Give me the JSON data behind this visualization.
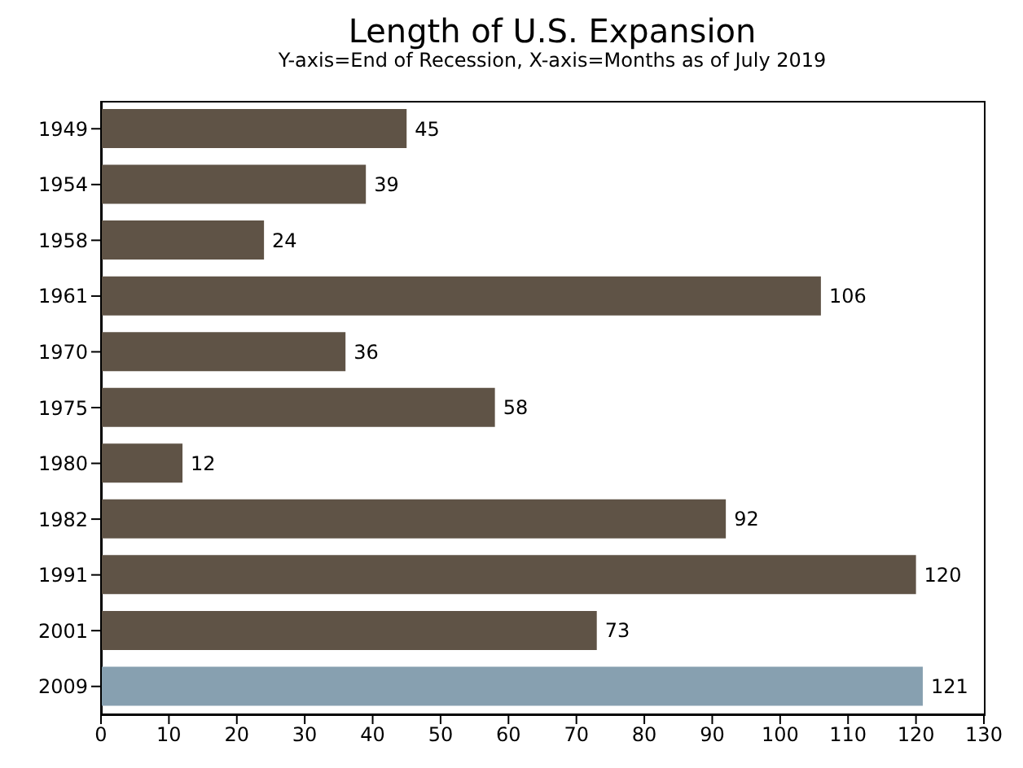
{
  "chart_data": {
    "type": "bar",
    "orientation": "horizontal",
    "title": "Length of U.S. Expansion",
    "subtitle": "Y-axis=End of Recession, X-axis=Months as of July 2019",
    "categories": [
      "1949",
      "1954",
      "1958",
      "1961",
      "1970",
      "1975",
      "1980",
      "1982",
      "1991",
      "2001",
      "2009"
    ],
    "values": [
      45,
      39,
      24,
      106,
      36,
      58,
      12,
      92,
      120,
      73,
      121
    ],
    "colors": [
      "#5f5346",
      "#5f5346",
      "#5f5346",
      "#5f5346",
      "#5f5346",
      "#5f5346",
      "#5f5346",
      "#5f5346",
      "#5f5346",
      "#5f5346",
      "#87a0b0"
    ],
    "xlim": [
      0,
      130
    ],
    "xticks": [
      0,
      10,
      20,
      30,
      40,
      50,
      60,
      70,
      80,
      90,
      100,
      110,
      120,
      130
    ],
    "data_labels": true,
    "grid": false
  }
}
